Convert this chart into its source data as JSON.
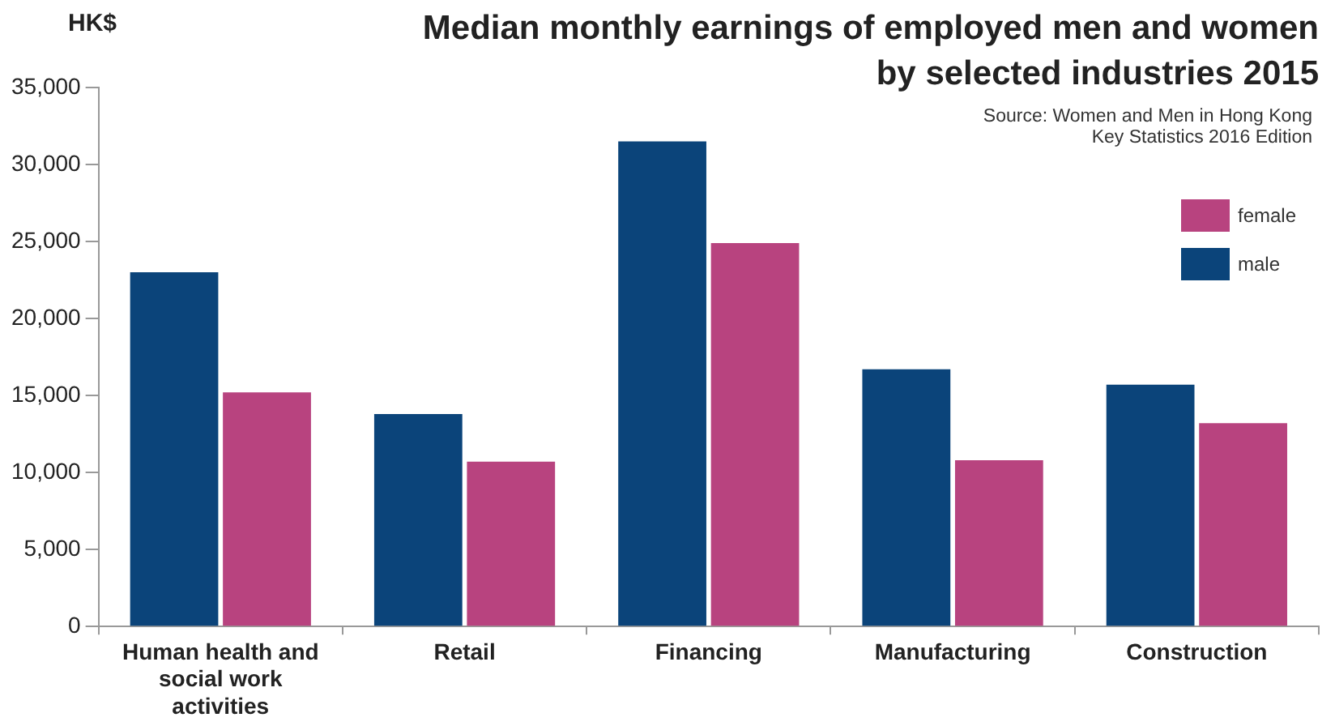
{
  "chart_data": {
    "type": "bar",
    "title": "Median monthly earnings of employed men and women by selected industries 2015",
    "ylabel": "HK$",
    "annotations": [
      "Source: Women and Men in Hong Kong Key Statistics 2016 Edition"
    ],
    "categories": [
      "Human health and social work activities",
      "Retail",
      "Financing",
      "Manufacturing",
      "Construction"
    ],
    "series": [
      {
        "name": "male",
        "color": "#0b447a",
        "values": [
          23000,
          13800,
          31500,
          16700,
          15700
        ]
      },
      {
        "name": "female",
        "color": "#b8437f",
        "values": [
          15200,
          10700,
          24900,
          10800,
          13200
        ]
      }
    ],
    "ylim": [
      0,
      35000
    ],
    "yticks": [
      {
        "value": 0,
        "label": "0"
      },
      {
        "value": 5000,
        "label": "5,000"
      },
      {
        "value": 10000,
        "label": "10,000"
      },
      {
        "value": 15000,
        "label": "15,000"
      },
      {
        "value": 20000,
        "label": "20,000"
      },
      {
        "value": 25000,
        "label": "25,000"
      },
      {
        "value": 30000,
        "label": "30,000"
      },
      {
        "value": 35000,
        "label": "35,000"
      }
    ],
    "grid": false,
    "legend": "top right"
  }
}
